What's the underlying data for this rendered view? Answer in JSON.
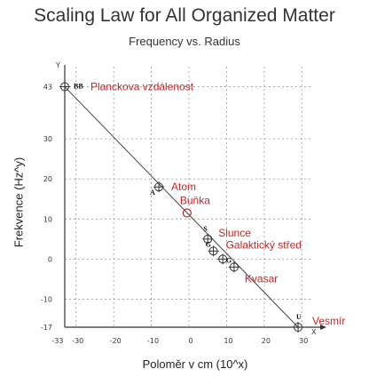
{
  "chart_data": {
    "type": "scatter",
    "title": "Scaling Law for All Organized Matter",
    "subtitle": "Frequency vs. Radius",
    "xlabel": "Poloměr v cm (10^x)",
    "ylabel": "Frekvence (Hz^y)",
    "x_axis_letter": "X",
    "y_axis_letter": "Y",
    "xlim": [
      -33,
      33
    ],
    "ylim": [
      -17,
      48
    ],
    "x_ticks": [
      -33,
      -30,
      -20,
      -10,
      0,
      10,
      20,
      30
    ],
    "y_ticks": [
      43,
      30,
      20,
      10,
      0,
      -10,
      -17
    ],
    "grid": true,
    "annotation_color": "#cc2222",
    "line_color": "#444444",
    "points": [
      {
        "x": -33,
        "y": 43,
        "code": "BB",
        "label": "Planckova vzdálenost"
      },
      {
        "x": -8,
        "y": 18,
        "code": "A",
        "label": "Atom"
      },
      {
        "x": -0.5,
        "y": 11.5,
        "code": "",
        "label": "Buňka",
        "highlight": true
      },
      {
        "x": 5,
        "y": 5,
        "code": "S",
        "label": "Slunce"
      },
      {
        "x": 6.5,
        "y": 2,
        "code": "G",
        "label": "Galaktický střed"
      },
      {
        "x": 9,
        "y": 0,
        "code": "",
        "label": ""
      },
      {
        "x": 12,
        "y": -2,
        "code": "G",
        "label": "Kvasar"
      },
      {
        "x": 29,
        "y": -17,
        "code": "U",
        "label": "Vesmír"
      }
    ]
  }
}
